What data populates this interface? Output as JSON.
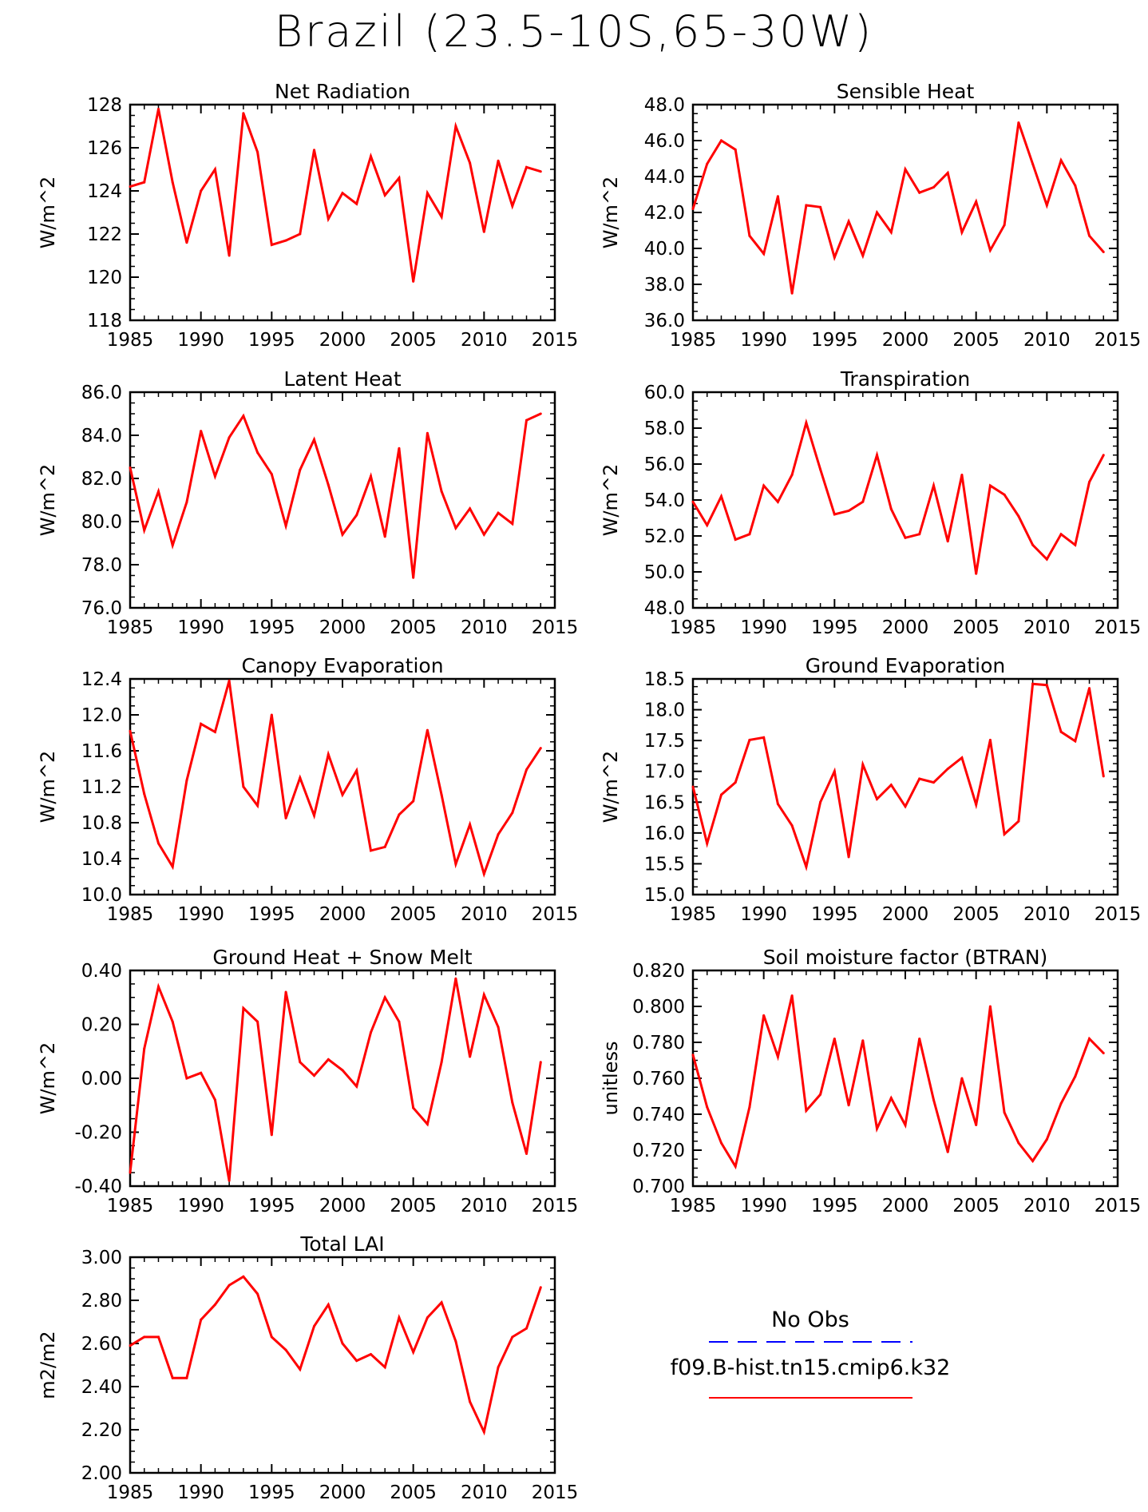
{
  "title": "Brazil (23.5-10S,65-30W)",
  "x_years": [
    1985,
    1986,
    1987,
    1988,
    1989,
    1990,
    1991,
    1992,
    1993,
    1994,
    1995,
    1996,
    1997,
    1998,
    1999,
    2000,
    2001,
    2002,
    2003,
    2004,
    2005,
    2006,
    2007,
    2008,
    2009,
    2010,
    2011,
    2012,
    2013,
    2014
  ],
  "line_color": "#ff0000",
  "legend": {
    "obs_label": "No Obs",
    "obs_color": "#0000ff",
    "model_label": "f09.B-hist.tn15.cmip6.k32",
    "model_color": "#ff0000"
  },
  "chart_data": [
    {
      "type": "line",
      "title": "Net Radiation",
      "ylabel": "W/m^2",
      "xlim": [
        1985,
        2015
      ],
      "x_ticks": [
        "1985",
        "1990",
        "1995",
        "2000",
        "2005",
        "2010",
        "2015"
      ],
      "ylim": [
        118,
        128
      ],
      "y_ticks": [
        "118",
        "120",
        "122",
        "124",
        "126",
        "128"
      ],
      "values": [
        124.2,
        124.4,
        127.8,
        124.4,
        121.6,
        124.0,
        125.0,
        121.0,
        127.6,
        125.8,
        121.5,
        121.7,
        122.0,
        125.9,
        122.7,
        123.9,
        123.4,
        125.6,
        123.8,
        124.6,
        119.8,
        123.9,
        122.8,
        127.0,
        125.3,
        122.1,
        125.4,
        123.3,
        125.1,
        124.9
      ]
    },
    {
      "type": "line",
      "title": "Sensible Heat",
      "ylabel": "W/m^2",
      "xlim": [
        1985,
        2015
      ],
      "x_ticks": [
        "1985",
        "1990",
        "1995",
        "2000",
        "2005",
        "2010",
        "2015"
      ],
      "ylim": [
        36,
        48
      ],
      "y_ticks": [
        "36.0",
        "38.0",
        "40.0",
        "42.0",
        "44.0",
        "46.0",
        "48.0"
      ],
      "values": [
        42.2,
        44.7,
        46.0,
        45.5,
        40.7,
        39.7,
        42.9,
        37.5,
        42.4,
        42.3,
        39.5,
        41.5,
        39.6,
        42.0,
        40.9,
        44.4,
        43.1,
        43.4,
        44.2,
        40.9,
        42.6,
        39.9,
        41.3,
        47.0,
        44.7,
        42.4,
        44.9,
        43.5,
        40.7,
        39.8
      ]
    },
    {
      "type": "line",
      "title": "Latent Heat",
      "ylabel": "W/m^2",
      "xlim": [
        1985,
        2015
      ],
      "x_ticks": [
        "1985",
        "1990",
        "1995",
        "2000",
        "2005",
        "2010",
        "2015"
      ],
      "ylim": [
        76,
        86
      ],
      "y_ticks": [
        "76.0",
        "78.0",
        "80.0",
        "82.0",
        "84.0",
        "86.0"
      ],
      "values": [
        82.5,
        79.6,
        81.4,
        78.9,
        80.9,
        84.2,
        82.1,
        83.9,
        84.9,
        83.2,
        82.2,
        79.8,
        82.4,
        83.8,
        81.7,
        79.4,
        80.3,
        82.1,
        79.3,
        83.4,
        77.4,
        84.1,
        81.4,
        79.7,
        80.6,
        79.4,
        80.4,
        79.9,
        84.7,
        85.0
      ]
    },
    {
      "type": "line",
      "title": "Transpiration",
      "ylabel": "W/m^2",
      "xlim": [
        1985,
        2015
      ],
      "x_ticks": [
        "1985",
        "1990",
        "1995",
        "2000",
        "2005",
        "2010",
        "2015"
      ],
      "ylim": [
        48,
        60
      ],
      "y_ticks": [
        "48.0",
        "50.0",
        "52.0",
        "54.0",
        "56.0",
        "58.0",
        "60.0"
      ],
      "values": [
        53.9,
        52.6,
        54.2,
        51.8,
        52.1,
        54.8,
        53.9,
        55.4,
        58.3,
        55.7,
        53.2,
        53.4,
        53.9,
        56.5,
        53.5,
        51.9,
        52.1,
        54.8,
        51.7,
        55.4,
        49.9,
        54.8,
        54.3,
        53.1,
        51.5,
        50.7,
        52.1,
        51.5,
        55.0,
        56.5
      ]
    },
    {
      "type": "line",
      "title": "Canopy Evaporation",
      "ylabel": "W/m^2",
      "xlim": [
        1985,
        2015
      ],
      "x_ticks": [
        "1985",
        "1990",
        "1995",
        "2000",
        "2005",
        "2010",
        "2015"
      ],
      "ylim": [
        10.0,
        12.4
      ],
      "y_ticks": [
        "10.0",
        "10.4",
        "10.8",
        "11.2",
        "11.6",
        "12.0",
        "12.4"
      ],
      "values": [
        11.82,
        11.12,
        10.57,
        10.31,
        11.27,
        11.9,
        11.81,
        12.38,
        11.2,
        10.99,
        12.0,
        10.85,
        11.3,
        10.88,
        11.56,
        11.11,
        11.38,
        10.49,
        10.53,
        10.89,
        11.04,
        11.83,
        11.11,
        10.34,
        10.78,
        10.23,
        10.67,
        10.91,
        11.39,
        11.63
      ]
    },
    {
      "type": "line",
      "title": "Ground Evaporation",
      "ylabel": "W/m^2",
      "xlim": [
        1985,
        2015
      ],
      "x_ticks": [
        "1985",
        "1990",
        "1995",
        "2000",
        "2005",
        "2010",
        "2015"
      ],
      "ylim": [
        15.0,
        18.5
      ],
      "y_ticks": [
        "15.0",
        "15.5",
        "16.0",
        "16.5",
        "17.0",
        "17.5",
        "18.0",
        "18.5"
      ],
      "values": [
        16.75,
        15.83,
        16.62,
        16.82,
        17.51,
        17.55,
        16.47,
        16.12,
        15.45,
        16.5,
        17.0,
        15.61,
        17.11,
        16.55,
        16.78,
        16.43,
        16.88,
        16.82,
        17.04,
        17.22,
        16.46,
        17.51,
        15.98,
        16.19,
        18.42,
        18.4,
        17.64,
        17.49,
        18.35,
        16.92
      ]
    },
    {
      "type": "line",
      "title": "Ground Heat + Snow Melt",
      "ylabel": "W/m^2",
      "xlim": [
        1985,
        2015
      ],
      "x_ticks": [
        "1985",
        "1990",
        "1995",
        "2000",
        "2005",
        "2010",
        "2015"
      ],
      "ylim": [
        -0.4,
        0.4
      ],
      "y_ticks": [
        "-0.40",
        "-0.20",
        "0.00",
        "0.20",
        "0.40"
      ],
      "values": [
        -0.35,
        0.11,
        0.34,
        0.21,
        0.0,
        0.02,
        -0.08,
        -0.38,
        0.26,
        0.21,
        -0.21,
        0.32,
        0.06,
        0.01,
        0.07,
        0.03,
        -0.03,
        0.17,
        0.3,
        0.21,
        -0.11,
        -0.17,
        0.06,
        0.37,
        0.08,
        0.31,
        0.19,
        -0.09,
        -0.28,
        0.06
      ]
    },
    {
      "type": "line",
      "title": "Soil moisture factor (BTRAN)",
      "ylabel": "unitless",
      "xlim": [
        1985,
        2015
      ],
      "x_ticks": [
        "1985",
        "1990",
        "1995",
        "2000",
        "2005",
        "2010",
        "2015"
      ],
      "ylim": [
        0.7,
        0.82
      ],
      "y_ticks": [
        "0.700",
        "0.720",
        "0.740",
        "0.760",
        "0.780",
        "0.800",
        "0.820"
      ],
      "values": [
        0.773,
        0.744,
        0.724,
        0.711,
        0.744,
        0.795,
        0.772,
        0.806,
        0.742,
        0.751,
        0.782,
        0.745,
        0.781,
        0.732,
        0.749,
        0.734,
        0.782,
        0.748,
        0.719,
        0.76,
        0.734,
        0.8,
        0.741,
        0.724,
        0.714,
        0.726,
        0.746,
        0.761,
        0.782,
        0.774
      ]
    },
    {
      "type": "line",
      "title": "Total LAI",
      "ylabel": "m2/m2",
      "xlim": [
        1985,
        2015
      ],
      "x_ticks": [
        "1985",
        "1990",
        "1995",
        "2000",
        "2005",
        "2010",
        "2015"
      ],
      "ylim": [
        2.0,
        3.0
      ],
      "y_ticks": [
        "2.00",
        "2.20",
        "2.40",
        "2.60",
        "2.80",
        "3.00"
      ],
      "values": [
        2.59,
        2.63,
        2.63,
        2.44,
        2.44,
        2.71,
        2.78,
        2.87,
        2.91,
        2.83,
        2.63,
        2.57,
        2.48,
        2.68,
        2.78,
        2.6,
        2.52,
        2.55,
        2.49,
        2.72,
        2.56,
        2.72,
        2.79,
        2.61,
        2.33,
        2.19,
        2.49,
        2.63,
        2.67,
        2.86
      ]
    }
  ]
}
